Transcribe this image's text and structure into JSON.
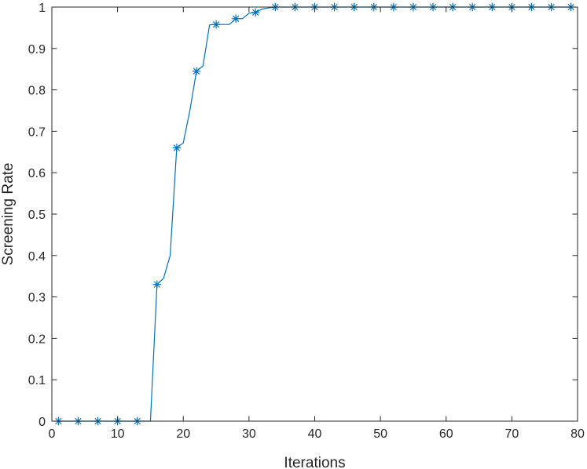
{
  "chart_data": {
    "type": "line",
    "title": "",
    "xlabel": "Iterations",
    "ylabel": "Screening Rate",
    "xlim": [
      0,
      80
    ],
    "ylim": [
      0,
      1
    ],
    "xticks": [
      0,
      10,
      20,
      30,
      40,
      50,
      60,
      70,
      80
    ],
    "yticks": [
      0,
      0.1,
      0.2,
      0.3,
      0.4,
      0.5,
      0.6,
      0.7,
      0.8,
      0.9,
      1
    ],
    "grid": false,
    "legend": "none",
    "series": [
      {
        "color": "#0072BD",
        "marker": "asterisk",
        "line_points": [
          [
            1,
            0
          ],
          [
            2,
            0
          ],
          [
            3,
            0
          ],
          [
            4,
            0
          ],
          [
            5,
            0
          ],
          [
            6,
            0
          ],
          [
            7,
            0
          ],
          [
            8,
            0
          ],
          [
            9,
            0
          ],
          [
            10,
            0
          ],
          [
            11,
            0
          ],
          [
            12,
            0
          ],
          [
            13,
            0
          ],
          [
            14,
            0
          ],
          [
            15,
            0
          ],
          [
            16,
            0.33
          ],
          [
            17,
            0.345
          ],
          [
            18,
            0.4
          ],
          [
            19,
            0.66
          ],
          [
            20,
            0.672
          ],
          [
            21,
            0.75
          ],
          [
            22,
            0.845
          ],
          [
            23,
            0.858
          ],
          [
            24,
            0.957
          ],
          [
            25,
            0.958
          ],
          [
            26,
            0.958
          ],
          [
            27,
            0.958
          ],
          [
            28,
            0.972
          ],
          [
            29,
            0.972
          ],
          [
            30,
            0.985
          ],
          [
            31,
            0.987
          ],
          [
            32,
            0.995
          ],
          [
            33,
            0.998
          ],
          [
            34,
            1
          ],
          [
            35,
            1
          ],
          [
            36,
            1
          ],
          [
            37,
            1
          ],
          [
            38,
            1
          ],
          [
            39,
            1
          ],
          [
            40,
            1
          ],
          [
            41,
            1
          ],
          [
            42,
            1
          ],
          [
            43,
            1
          ],
          [
            44,
            1
          ],
          [
            45,
            1
          ],
          [
            46,
            1
          ],
          [
            47,
            1
          ],
          [
            48,
            1
          ],
          [
            49,
            1
          ],
          [
            50,
            1
          ],
          [
            51,
            1
          ],
          [
            52,
            1
          ],
          [
            53,
            1
          ],
          [
            54,
            1
          ],
          [
            55,
            1
          ],
          [
            56,
            1
          ],
          [
            57,
            1
          ],
          [
            58,
            1
          ],
          [
            59,
            1
          ],
          [
            60,
            1
          ],
          [
            61,
            1
          ],
          [
            62,
            1
          ],
          [
            63,
            1
          ],
          [
            64,
            1
          ],
          [
            65,
            1
          ],
          [
            66,
            1
          ],
          [
            67,
            1
          ],
          [
            68,
            1
          ],
          [
            69,
            1
          ],
          [
            70,
            1
          ],
          [
            71,
            1
          ],
          [
            72,
            1
          ],
          [
            73,
            1
          ],
          [
            74,
            1
          ],
          [
            75,
            1
          ],
          [
            76,
            1
          ],
          [
            77,
            1
          ],
          [
            78,
            1
          ],
          [
            79,
            1
          ]
        ],
        "marker_points": [
          [
            1,
            0
          ],
          [
            4,
            0
          ],
          [
            7,
            0
          ],
          [
            10,
            0
          ],
          [
            13,
            0
          ],
          [
            16,
            0.33
          ],
          [
            19,
            0.66
          ],
          [
            22,
            0.845
          ],
          [
            25,
            0.958
          ],
          [
            28,
            0.972
          ],
          [
            31,
            0.987
          ],
          [
            34,
            1
          ],
          [
            37,
            1
          ],
          [
            40,
            1
          ],
          [
            43,
            1
          ],
          [
            46,
            1
          ],
          [
            49,
            1
          ],
          [
            52,
            1
          ],
          [
            55,
            1
          ],
          [
            58,
            1
          ],
          [
            61,
            1
          ],
          [
            64,
            1
          ],
          [
            67,
            1
          ],
          [
            70,
            1
          ],
          [
            73,
            1
          ],
          [
            76,
            1
          ],
          [
            79,
            1
          ]
        ]
      }
    ]
  }
}
